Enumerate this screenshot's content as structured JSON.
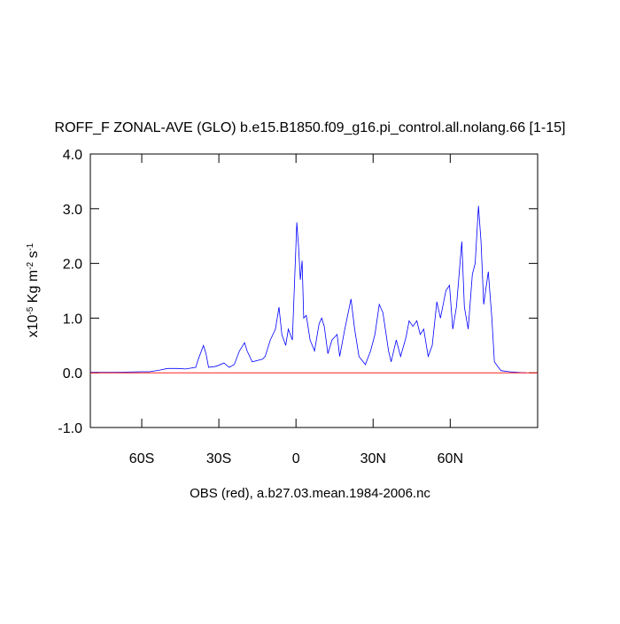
{
  "chart_data": {
    "type": "line",
    "title": "ROFF_F ZONAL-AVE (GLO) b.e15.B1850.f09_g16.pi_control.all.nolang.66 [1-15]",
    "xlabel": "OBS (red), a.b27.03.mean.1984-2006.nc",
    "ylabel": [
      {
        "text": "x10"
      },
      {
        "text": "-5",
        "sup": true
      },
      {
        "text": " Kg m"
      },
      {
        "text": "-2",
        "sup": true
      },
      {
        "text": " s"
      },
      {
        "text": "-1",
        "sup": true
      }
    ],
    "xlim": [
      -80,
      94
    ],
    "ylim": [
      -1,
      4
    ],
    "xticks": [
      {
        "value": -60,
        "label": "60S"
      },
      {
        "value": -30,
        "label": "30S"
      },
      0,
      {
        "value": 30,
        "label": "30N"
      },
      {
        "value": 60,
        "label": "60N"
      }
    ],
    "yticks": [
      {
        "value": -1,
        "label": "-1.0"
      },
      {
        "value": 0,
        "label": "0.0"
      },
      {
        "value": 1,
        "label": "1.0"
      },
      {
        "value": 2,
        "label": "2.0"
      },
      {
        "value": 3,
        "label": "3.0"
      },
      {
        "value": 4,
        "label": "4.0"
      }
    ],
    "series": [
      {
        "color": "#0000ff",
        "x": [
          -80,
          -70,
          -60,
          -57,
          -53,
          -50,
          -46,
          -43,
          -39,
          -38,
          -36,
          -35,
          -34,
          -31,
          -28,
          -26,
          -24,
          -22,
          -20,
          -19,
          -17,
          -13,
          -12,
          -10,
          -8,
          -6.6,
          -5.5,
          -4,
          -3,
          -1.4,
          0.3,
          1,
          1.7,
          2.4,
          3,
          4,
          5.5,
          7.2,
          9,
          10,
          11,
          12.4,
          14,
          16,
          17,
          19,
          21.4,
          22.8,
          24.5,
          27,
          29,
          30.7,
          32.4,
          33.8,
          36,
          37,
          39,
          40.7,
          42.8,
          44,
          45.5,
          47,
          48.3,
          49.7,
          51.4,
          53,
          54.8,
          56.2,
          58.3,
          59.7,
          61,
          62.4,
          64.5,
          65.5,
          67,
          68.6,
          69.7,
          71,
          72,
          73,
          74.8,
          76.2,
          77.2,
          79.7,
          83,
          88.3,
          89.6
        ],
        "values": [
          0.01,
          0.01,
          0.02,
          0.02,
          0.05,
          0.08,
          0.08,
          0.07,
          0.1,
          0.25,
          0.5,
          0.35,
          0.1,
          0.12,
          0.18,
          0.1,
          0.15,
          0.4,
          0.55,
          0.4,
          0.2,
          0.25,
          0.3,
          0.6,
          0.8,
          1.2,
          0.7,
          0.5,
          0.8,
          0.6,
          2.75,
          2.3,
          1.7,
          2.05,
          1.0,
          1.05,
          0.6,
          0.4,
          0.9,
          1.0,
          0.85,
          0.35,
          0.6,
          0.7,
          0.3,
          0.8,
          1.35,
          0.8,
          0.3,
          0.15,
          0.4,
          0.7,
          1.25,
          1.1,
          0.4,
          0.2,
          0.6,
          0.3,
          0.65,
          0.95,
          0.85,
          0.95,
          0.7,
          0.8,
          0.3,
          0.5,
          1.3,
          1.0,
          1.5,
          1.6,
          0.8,
          1.2,
          2.4,
          1.2,
          0.8,
          1.8,
          2.0,
          3.05,
          2.4,
          1.25,
          1.85,
          1.0,
          0.2,
          0.04,
          0.02,
          0.0,
          0.0
        ]
      },
      {
        "color": "#ff0000",
        "x": [
          -80,
          94
        ],
        "values": [
          0,
          0
        ]
      }
    ]
  }
}
